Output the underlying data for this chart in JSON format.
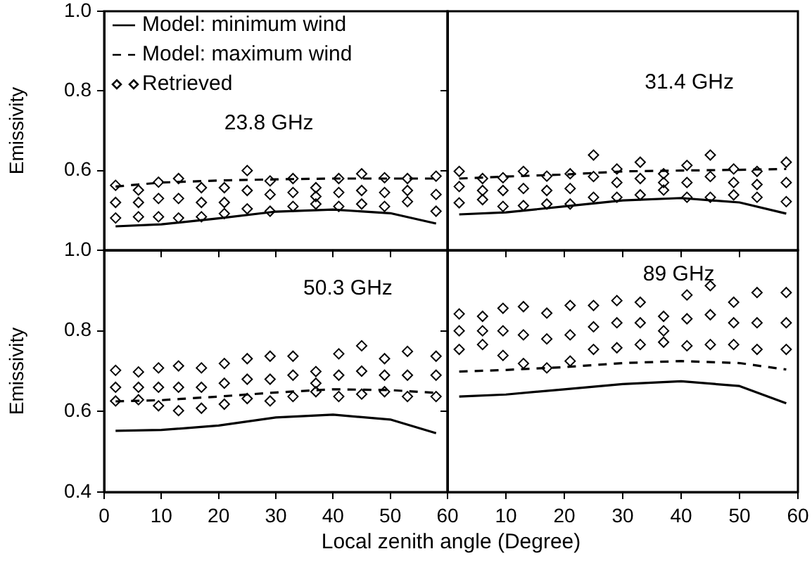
{
  "chart_data": [
    {
      "type": "line",
      "annotations": [
        "23.8 GHz"
      ],
      "ylabel": "Emissivity",
      "xlim": [
        0,
        60
      ],
      "ylim": [
        0.4,
        1.0
      ],
      "xticks": [
        0,
        10,
        20,
        30,
        40,
        50,
        60
      ],
      "yticks": [
        0.6,
        0.8,
        {
          "value": 1,
          "label": "1.0"
        }
      ],
      "tick_labels": "y",
      "legend": "top left",
      "series": [
        {
          "name": "Model: minimum wind",
          "type": "line",
          "line_style": "solid",
          "color": "#000000",
          "x": [
            2,
            10,
            20,
            30,
            40,
            50,
            58
          ],
          "values": [
            0.46,
            0.465,
            0.48,
            0.497,
            0.502,
            0.493,
            0.467
          ]
        },
        {
          "name": "Model: maximum wind",
          "type": "line",
          "line_style": "dashed",
          "color": "#000000",
          "x": [
            2,
            10,
            20,
            30,
            40,
            50,
            58
          ],
          "values": [
            0.56,
            0.57,
            0.575,
            0.578,
            0.58,
            0.58,
            0.58
          ]
        },
        {
          "name": "Retrieved",
          "type": "scatter",
          "marker": "diamond",
          "color": "#000000",
          "x": [
            2,
            2,
            2,
            6,
            6,
            6,
            9.5,
            9.5,
            9.5,
            13,
            13,
            13,
            17,
            17,
            17,
            21,
            21,
            21,
            25,
            25,
            25,
            29,
            29,
            29,
            33,
            33,
            33,
            37,
            37,
            37,
            41,
            41,
            41,
            45,
            45,
            45,
            49,
            49,
            49,
            53,
            53,
            53,
            58,
            58,
            58
          ],
          "values": [
            0.563,
            0.52,
            0.481,
            0.551,
            0.52,
            0.484,
            0.571,
            0.53,
            0.484,
            0.58,
            0.53,
            0.481,
            0.557,
            0.52,
            0.484,
            0.557,
            0.52,
            0.492,
            0.6,
            0.55,
            0.504,
            0.574,
            0.54,
            0.498,
            0.58,
            0.545,
            0.51,
            0.557,
            0.535,
            0.516,
            0.58,
            0.545,
            0.51,
            0.592,
            0.55,
            0.516,
            0.582,
            0.545,
            0.51,
            0.58,
            0.55,
            0.522,
            0.586,
            0.54,
            0.498
          ]
        }
      ]
    },
    {
      "type": "line",
      "annotations": [
        "31.4 GHz"
      ],
      "xlim": [
        0,
        60
      ],
      "ylim": [
        0.4,
        1.0
      ],
      "xticks": [
        0,
        10,
        20,
        30,
        40,
        50,
        60
      ],
      "yticks": [
        0.4,
        0.6,
        0.8,
        1
      ],
      "tick_labels": false,
      "series": [
        {
          "type": "line",
          "line_style": "solid",
          "color": "#000000",
          "x": [
            2,
            10,
            20,
            30,
            40,
            50,
            58
          ],
          "values": [
            0.49,
            0.495,
            0.51,
            0.525,
            0.531,
            0.52,
            0.492
          ]
        },
        {
          "type": "line",
          "line_style": "dashed",
          "color": "#000000",
          "x": [
            2,
            10,
            20,
            30,
            40,
            50,
            58
          ],
          "values": [
            0.58,
            0.585,
            0.59,
            0.598,
            0.6,
            0.602,
            0.604
          ]
        },
        {
          "type": "scatter",
          "marker": "diamond",
          "color": "#000000",
          "x": [
            2,
            2,
            2,
            6,
            6,
            6,
            9.5,
            9.5,
            9.5,
            13,
            13,
            13,
            17,
            17,
            17,
            21,
            21,
            21,
            25,
            25,
            25,
            29,
            29,
            29,
            33,
            33,
            33,
            37,
            37,
            37,
            41,
            41,
            41,
            45,
            45,
            45,
            49,
            49,
            49,
            53,
            53,
            53,
            58,
            58,
            58
          ],
          "values": [
            0.598,
            0.56,
            0.519,
            0.58,
            0.55,
            0.527,
            0.582,
            0.55,
            0.51,
            0.598,
            0.555,
            0.512,
            0.586,
            0.55,
            0.516,
            0.592,
            0.555,
            0.516,
            0.639,
            0.585,
            0.533,
            0.604,
            0.57,
            0.533,
            0.621,
            0.58,
            0.539,
            0.592,
            0.57,
            0.551,
            0.613,
            0.57,
            0.533,
            0.639,
            0.585,
            0.533,
            0.604,
            0.57,
            0.539,
            0.598,
            0.565,
            0.533,
            0.621,
            0.57,
            0.522
          ]
        }
      ]
    },
    {
      "type": "line",
      "annotations": [
        "50.3 GHz"
      ],
      "ylabel": "Emissivity",
      "xlabel": "Local zenith angle (Degree)",
      "xlim": [
        0,
        60
      ],
      "ylim": [
        0.4,
        1.0
      ],
      "xticks": [
        0,
        10,
        20,
        30,
        40,
        50,
        60
      ],
      "yticks": [
        0.4,
        0.6,
        0.8,
        {
          "value": 1,
          "label": "1.0"
        }
      ],
      "series": [
        {
          "type": "line",
          "line_style": "solid",
          "color": "#000000",
          "x": [
            2,
            10,
            20,
            30,
            40,
            50,
            58
          ],
          "values": [
            0.552,
            0.554,
            0.565,
            0.585,
            0.592,
            0.58,
            0.546
          ]
        },
        {
          "type": "line",
          "line_style": "dashed",
          "color": "#000000",
          "x": [
            2,
            10,
            20,
            30,
            40,
            50,
            58
          ],
          "values": [
            0.625,
            0.628,
            0.637,
            0.647,
            0.655,
            0.653,
            0.646
          ]
        },
        {
          "type": "scatter",
          "marker": "diamond",
          "color": "#000000",
          "x": [
            2,
            2,
            2,
            6,
            6,
            6,
            9.5,
            9.5,
            9.5,
            13,
            13,
            13,
            17,
            17,
            17,
            21,
            21,
            21,
            25,
            25,
            25,
            29,
            29,
            29,
            33,
            33,
            33,
            37,
            37,
            37,
            41,
            41,
            41,
            45,
            45,
            45,
            49,
            49,
            49,
            53,
            53,
            53,
            58,
            58,
            58
          ],
          "values": [
            0.702,
            0.66,
            0.626,
            0.698,
            0.66,
            0.629,
            0.708,
            0.66,
            0.614,
            0.713,
            0.66,
            0.602,
            0.708,
            0.66,
            0.608,
            0.719,
            0.67,
            0.618,
            0.731,
            0.68,
            0.632,
            0.737,
            0.68,
            0.626,
            0.737,
            0.69,
            0.637,
            0.699,
            0.67,
            0.649,
            0.743,
            0.69,
            0.637,
            0.763,
            0.7,
            0.643,
            0.731,
            0.69,
            0.649,
            0.749,
            0.69,
            0.637,
            0.737,
            0.69,
            0.637
          ]
        }
      ]
    },
    {
      "type": "line",
      "annotations": [
        "89 GHz"
      ],
      "xlim": [
        0,
        60
      ],
      "ylim": [
        0.4,
        1.0
      ],
      "xticks": [
        10,
        20,
        30,
        40,
        50,
        60
      ],
      "yticks": [
        0.4,
        0.6,
        0.8,
        1
      ],
      "tick_labels": "x",
      "series": [
        {
          "type": "line",
          "line_style": "solid",
          "color": "#000000",
          "x": [
            2,
            10,
            20,
            30,
            40,
            50,
            58
          ],
          "values": [
            0.637,
            0.642,
            0.655,
            0.668,
            0.675,
            0.663,
            0.62
          ]
        },
        {
          "type": "line",
          "line_style": "dashed",
          "color": "#000000",
          "x": [
            2,
            10,
            20,
            30,
            40,
            50,
            58
          ],
          "values": [
            0.699,
            0.703,
            0.71,
            0.72,
            0.725,
            0.72,
            0.704
          ]
        },
        {
          "type": "scatter",
          "marker": "diamond",
          "color": "#000000",
          "x": [
            2,
            2,
            2,
            6,
            6,
            6,
            9.5,
            9.5,
            9.5,
            13,
            13,
            13,
            17,
            17,
            17,
            21,
            21,
            21,
            25,
            25,
            25,
            29,
            29,
            29,
            33,
            33,
            33,
            37,
            37,
            37,
            41,
            41,
            41,
            45,
            45,
            45,
            49,
            49,
            49,
            53,
            53,
            53,
            58,
            58,
            58
          ],
          "values": [
            0.842,
            0.8,
            0.754,
            0.836,
            0.8,
            0.766,
            0.856,
            0.8,
            0.739,
            0.86,
            0.79,
            0.719,
            0.844,
            0.78,
            0.708,
            0.863,
            0.79,
            0.725,
            0.863,
            0.81,
            0.754,
            0.875,
            0.82,
            0.758,
            0.871,
            0.82,
            0.766,
            0.836,
            0.8,
            0.772,
            0.889,
            0.83,
            0.763,
            0.912,
            0.84,
            0.766,
            0.871,
            0.82,
            0.766,
            0.895,
            0.82,
            0.754,
            0.895,
            0.82,
            0.754
          ]
        }
      ]
    }
  ]
}
